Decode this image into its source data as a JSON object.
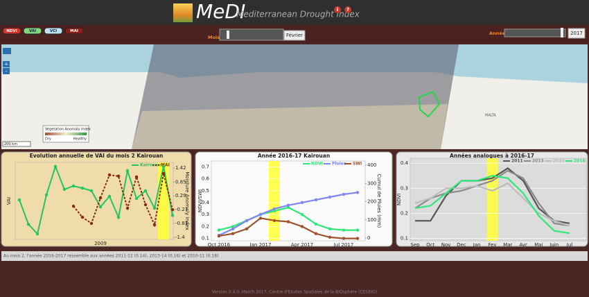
{
  "header": {
    "title": "MeDI",
    "subtitle": "Mediterranean Drought Index",
    "info": "i",
    "help": "?"
  },
  "controls": {
    "layers": [
      "NDVI",
      "VAI",
      "VCI",
      "MAI"
    ],
    "month_label": "Mois",
    "month_value": "Février",
    "year_label": "Année",
    "year_value": "2017"
  },
  "map": {
    "zoom_in": "+",
    "zoom_out": "-",
    "legend_title": "Vegetation Anomaly Index",
    "legend_dry": "Dry",
    "legend_healthy": "Healthy",
    "scale": "200 km",
    "country": "MALTA"
  },
  "chart_data": [
    {
      "type": "line",
      "title": "Evolution annuelle de VAI du mois 2 Kairouan",
      "ylabel": "VAI",
      "y2label": "Moisture Anomaly Index",
      "categories": [
        null,
        null,
        null,
        null,
        null,
        null,
        null,
        null,
        null,
        "2009",
        null,
        null,
        null,
        null,
        null,
        null,
        null,
        null
      ],
      "ylim": [
        -1.6,
        1.6
      ],
      "y2lim": [
        -1.48,
        1.65
      ],
      "y2ticks": [
        1.42,
        0.85,
        0.29,
        -0.27,
        -0.83,
        -1.4
      ],
      "grid": false,
      "highlight": 16,
      "series": [
        {
          "name": "Kairouan",
          "color": "#22c55e",
          "values": [
            0.04,
            -0.97,
            -1.37,
            0.25,
            1.43,
            0.48,
            0.62,
            0.53,
            0.42,
            -0.25,
            0.19,
            -0.68,
            1.25,
            0.1,
            0.42,
            -0.3,
            1.43,
            -0.6
          ]
        },
        {
          "name": "MAI",
          "color": "#8b2a0a",
          "axis": "y2",
          "dashed": true,
          "values": [
            null,
            null,
            null,
            null,
            null,
            null,
            -0.13,
            -0.58,
            -0.83,
            0.21,
            1.14,
            1.09,
            -0.21,
            1.06,
            -0.07,
            -0.89,
            1.2,
            -0.27
          ]
        }
      ]
    },
    {
      "type": "line",
      "title": "Année 2016-17 Kairouan",
      "ylabel": "NDVI/SWI",
      "y2label": "Cumul de Pluies (mm)",
      "categories": [
        "Oct 2016",
        null,
        null,
        "Jan 2017",
        null,
        null,
        "Apr 2017",
        null,
        null,
        "Jul 2017",
        null
      ],
      "ylim": [
        0.08,
        0.75
      ],
      "yticks": [
        0.1,
        0.2,
        0.3,
        0.4,
        0.5,
        0.6,
        0.7
      ],
      "y2lim": [
        -15,
        423
      ],
      "y2ticks": [
        0,
        100,
        200,
        300,
        400
      ],
      "grid": true,
      "highlight": 4,
      "series": [
        {
          "name": "NDVI",
          "color": "#2ee87a",
          "values": [
            0.17,
            0.2,
            0.25,
            0.3,
            0.33,
            0.36,
            0.3,
            0.22,
            0.18,
            0.17,
            0.17
          ]
        },
        {
          "name": "Pluies",
          "color": "#7f86f0",
          "axis": "y2",
          "values": [
            15,
            50,
            95,
            130,
            160,
            180,
            195,
            210,
            225,
            240,
            250
          ]
        },
        {
          "name": "SWI",
          "color": "#a0522d",
          "values": [
            0.12,
            0.14,
            0.18,
            0.27,
            0.25,
            0.24,
            0.2,
            0.14,
            0.11,
            0.1,
            0.1
          ]
        }
      ]
    },
    {
      "type": "line",
      "title": "Années analogues à 2016-17",
      "ylabel": "NDVI",
      "categories": [
        "Sep",
        "Oct",
        "Nov",
        "Dec",
        "Jan",
        "Fev",
        "Mar",
        "Avr",
        "Mai",
        "Juin",
        "Jul"
      ],
      "ylim": [
        0.09,
        0.42
      ],
      "yticks": [
        0.1,
        0.2,
        0.3,
        0.4
      ],
      "grid": true,
      "highlight": 5,
      "series": [
        {
          "name": "2011",
          "color": "#555555",
          "values": [
            0.17,
            0.17,
            0.27,
            0.33,
            0.33,
            0.34,
            0.38,
            0.33,
            0.22,
            0.17,
            0.16
          ]
        },
        {
          "name": "2013",
          "color": "#8a8a8a",
          "values": [
            0.22,
            0.26,
            0.28,
            0.29,
            0.31,
            0.33,
            0.37,
            0.34,
            0.24,
            0.16,
            0.15
          ]
        },
        {
          "name": "2010",
          "color": "#bdbdbd",
          "values": [
            0.24,
            0.26,
            0.3,
            0.3,
            0.31,
            0.29,
            0.32,
            0.26,
            0.2,
            0.17,
            0.15
          ]
        },
        {
          "name": "2016",
          "color": "#2ee87a",
          "values": [
            0.22,
            0.23,
            0.28,
            0.33,
            0.33,
            0.35,
            0.34,
            0.28,
            0.19,
            0.13,
            0.12
          ]
        }
      ]
    }
  ],
  "footer": {
    "summary": "Au mois 2, l'année 2016-2017 ressemble aux années 2011-12 (0.14), 2013-14 (0.16) et 2010-11 (0.18)",
    "version": "Version 0.4.0, March 2017, Centre d'Etudes Spatiales de la BIOsphère (CESBIO)"
  }
}
